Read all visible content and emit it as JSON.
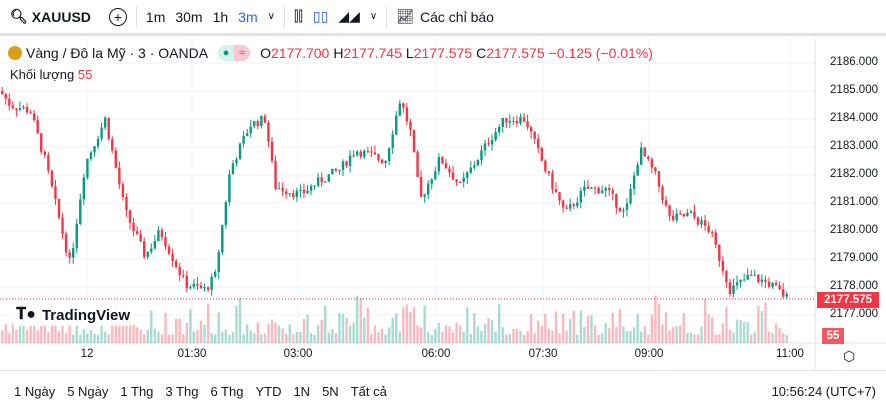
{
  "toolbar": {
    "symbol": "XAUUSD",
    "intervals": [
      "1m",
      "30m",
      "1h",
      "3m"
    ],
    "active_interval": "3m",
    "indicators_label": "Các chỉ báo"
  },
  "legend": {
    "title": "Vàng / Đô la Mỹ · 3 · OANDA",
    "o_label": "O",
    "o": "2177.700",
    "h_label": "H",
    "h": "2177.745",
    "l_label": "L",
    "l": "2177.575",
    "c_label": "C",
    "c": "2177.575",
    "change": "−0.125 (−0.01%)",
    "volume_label": "Khối lượng",
    "volume": "55"
  },
  "price_axis": {
    "ticks": [
      "2186.000",
      "2185.000",
      "2184.000",
      "2183.000",
      "2182.000",
      "2181.000",
      "2180.000",
      "2179.000",
      "2178.000",
      "2177.000"
    ],
    "current_price": "2177.575",
    "current_volume": "55"
  },
  "time_axis": [
    "12",
    "01:30",
    "03:00",
    "06:00",
    "07:30",
    "09:00",
    "11:00"
  ],
  "watermark": "TradingView",
  "ranges": [
    "1 Ngày",
    "5 Ngày",
    "1 Thg",
    "3 Thg",
    "6 Thg",
    "YTD",
    "1N",
    "5N",
    "Tất cả"
  ],
  "clock": "10:56:24 (UTC+7)",
  "colors": {
    "up": "#089981",
    "down": "#f23645",
    "accent": "#2962ff"
  },
  "chart_data": {
    "type": "candlestick",
    "ylim": [
      2176.6,
      2186.5
    ],
    "anchors": [
      [
        0,
        2185.0
      ],
      [
        10,
        2184.5
      ],
      [
        30,
        2184.3
      ],
      [
        45,
        2182.5
      ],
      [
        70,
        2178.8
      ],
      [
        85,
        2182.4
      ],
      [
        105,
        2184
      ],
      [
        125,
        2180.7
      ],
      [
        145,
        2179.1
      ],
      [
        160,
        2180
      ],
      [
        185,
        2178.1
      ],
      [
        205,
        2177.9
      ],
      [
        215,
        2178.4
      ],
      [
        230,
        2182.2
      ],
      [
        250,
        2183.8
      ],
      [
        265,
        2184
      ],
      [
        275,
        2181.6
      ],
      [
        300,
        2181.3
      ],
      [
        320,
        2181.8
      ],
      [
        340,
        2182.2
      ],
      [
        355,
        2182.9
      ],
      [
        385,
        2182.5
      ],
      [
        400,
        2184.7
      ],
      [
        410,
        2183.6
      ],
      [
        420,
        2181.1
      ],
      [
        440,
        2182.6
      ],
      [
        460,
        2181.6
      ],
      [
        490,
        2183.3
      ],
      [
        505,
        2184
      ],
      [
        525,
        2184
      ],
      [
        545,
        2182.2
      ],
      [
        565,
        2180.6
      ],
      [
        585,
        2181.5
      ],
      [
        605,
        2181.5
      ],
      [
        625,
        2180.6
      ],
      [
        640,
        2182.9
      ],
      [
        655,
        2182
      ],
      [
        670,
        2180.4
      ],
      [
        690,
        2180.6
      ],
      [
        710,
        2180
      ],
      [
        730,
        2177.9
      ],
      [
        750,
        2178.4
      ],
      [
        770,
        2178.1
      ],
      [
        788,
        2177.575
      ]
    ]
  }
}
